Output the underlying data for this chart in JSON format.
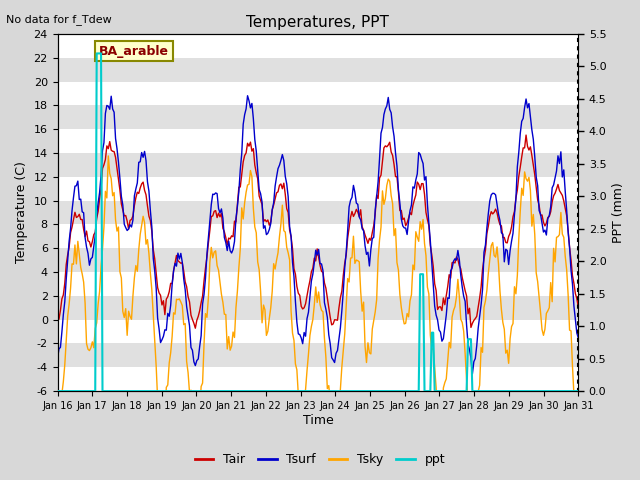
{
  "title": "Temperatures, PPT",
  "subtitle": "No data for f_Tdew",
  "location_label": "BA_arable",
  "xlabel": "Time",
  "ylabel_left": "Temperature (C)",
  "ylabel_right": "PPT (mm)",
  "ylim_left": [
    -6,
    24
  ],
  "ylim_right": [
    0.0,
    5.5
  ],
  "yticks_left": [
    -6,
    -4,
    -2,
    0,
    2,
    4,
    6,
    8,
    10,
    12,
    14,
    16,
    18,
    20,
    22,
    24
  ],
  "yticks_right": [
    0.0,
    0.5,
    1.0,
    1.5,
    2.0,
    2.5,
    3.0,
    3.5,
    4.0,
    4.5,
    5.0,
    5.5
  ],
  "xtick_labels": [
    "Jan 16",
    "Jan 17",
    "Jan 18",
    "Jan 19",
    "Jan 20",
    "Jan 21",
    "Jan 22",
    "Jan 23",
    "Jan 24",
    "Jan 25",
    "Jan 26",
    "Jan 27",
    "Jan 28",
    "Jan 29",
    "Jan 30",
    "Jan 31"
  ],
  "n_days": 15,
  "n_per_day": 24,
  "colors": {
    "Tair": "#cc0000",
    "Tsurf": "#0000cc",
    "Tsky": "#ffa500",
    "ppt": "#00cccc",
    "background": "#e0e0e0",
    "grid": "#ffffff",
    "location_box_bg": "#ffffcc",
    "location_box_edge": "#888800"
  },
  "legend_labels": [
    "Tair",
    "Tsurf",
    "Tsky",
    "ppt"
  ]
}
